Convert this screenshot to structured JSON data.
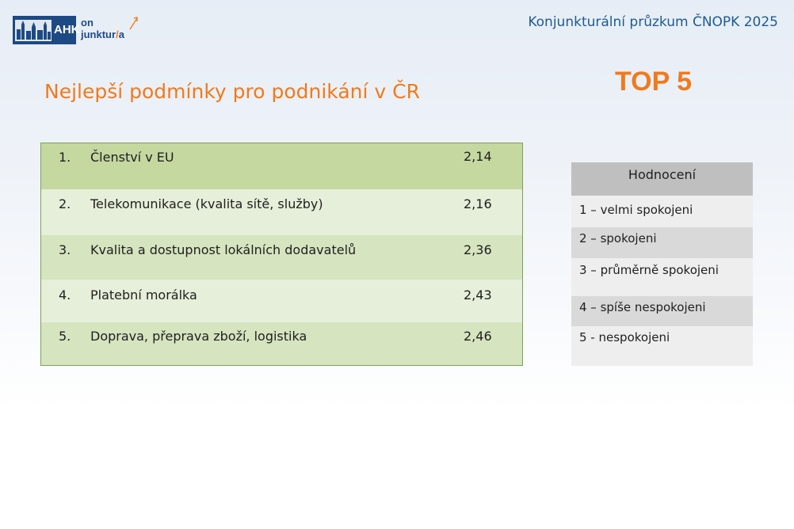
{
  "logo": {
    "brand": "AHK",
    "line1": "on",
    "line2": "junktur",
    "line2_suffix": "a"
  },
  "header": {
    "survey_title": "Konjunkturální průzkum ČNOPK 2025"
  },
  "title": "Nejlepší podmínky pro podnikání v ČR",
  "badge": "TOP 5",
  "ranking": [
    {
      "rank": "1.",
      "label": "Členství v EU",
      "value": "2,14"
    },
    {
      "rank": "2.",
      "label": "Telekomunikace (kvalita sítě, služby)",
      "value": "2,16"
    },
    {
      "rank": "3.",
      "label": "Kvalita a dostupnost lokálních dodavatelů",
      "value": "2,36"
    },
    {
      "rank": "4.",
      "label": "Platební morálka",
      "value": "2,43"
    },
    {
      "rank": "5.",
      "label": "Doprava, přeprava zboží, logistika",
      "value": "2,46"
    }
  ],
  "legend": {
    "heading": "Hodnocení",
    "items": [
      "1 – velmi spokojeni",
      "2 – spokojeni",
      "3 – průměrně spokojeni",
      "4 – spíše nespokojeni",
      "5 - nespokojeni"
    ]
  },
  "colors": {
    "accent_orange": "#f07a1d",
    "header_blue": "#1e5c8e",
    "row_dark_green": "#c4d8a0",
    "row_light_green": "#e6efd9",
    "legend_header": "#bfbfbf"
  }
}
